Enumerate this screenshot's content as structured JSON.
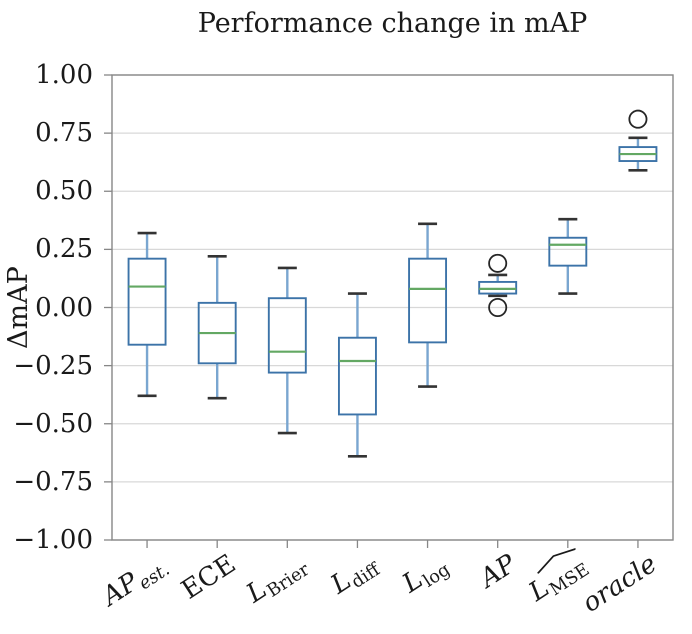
{
  "chart_data": {
    "type": "boxplot",
    "title": "Performance change in mAP",
    "ylabel": "ΔmAP",
    "xlabel": "",
    "ylim": [
      -1.0,
      1.0
    ],
    "grid": "horizontal",
    "legend": "none",
    "y_ticks": [
      {
        "value": 1.0,
        "label": "1.00"
      },
      {
        "value": 0.75,
        "label": "0.75"
      },
      {
        "value": 0.5,
        "label": "0.50"
      },
      {
        "value": 0.25,
        "label": "0.25"
      },
      {
        "value": 0.0,
        "label": "0.00"
      },
      {
        "value": -0.25,
        "label": "−0.25"
      },
      {
        "value": -0.5,
        "label": "−0.50"
      },
      {
        "value": -0.75,
        "label": "−0.75"
      },
      {
        "value": -1.0,
        "label": "−1.00"
      }
    ],
    "categories": [
      {
        "id": "ap-est",
        "main": "AP",
        "main_italic": true,
        "sub": "est.",
        "sub_italic": true,
        "hat": false
      },
      {
        "id": "ece",
        "main": "ECE",
        "main_italic": false,
        "sub": "",
        "sub_italic": false,
        "hat": false
      },
      {
        "id": "l-brier",
        "main": "L",
        "main_italic": true,
        "sub": "Brier",
        "sub_italic": false,
        "hat": false
      },
      {
        "id": "l-diff",
        "main": "L",
        "main_italic": true,
        "sub": "diff",
        "sub_italic": false,
        "hat": false
      },
      {
        "id": "l-log",
        "main": "L",
        "main_italic": true,
        "sub": "log",
        "sub_italic": false,
        "hat": false
      },
      {
        "id": "ap",
        "main": "AP",
        "main_italic": true,
        "sub": "",
        "sub_italic": false,
        "hat": false
      },
      {
        "id": "l-mse",
        "main": "L",
        "main_italic": true,
        "sub": "MSE",
        "sub_italic": false,
        "hat": true
      },
      {
        "id": "oracle",
        "main": "oracle",
        "main_italic": true,
        "sub": "",
        "sub_italic": false,
        "hat": false
      }
    ],
    "boxes": [
      {
        "category": "AP_est.",
        "whislo": -0.38,
        "q1": -0.16,
        "med": 0.09,
        "q3": 0.21,
        "whishi": 0.32,
        "fliers": []
      },
      {
        "category": "ECE",
        "whislo": -0.39,
        "q1": -0.24,
        "med": -0.11,
        "q3": 0.02,
        "whishi": 0.22,
        "fliers": []
      },
      {
        "category": "L_Brier",
        "whislo": -0.54,
        "q1": -0.28,
        "med": -0.19,
        "q3": 0.04,
        "whishi": 0.17,
        "fliers": []
      },
      {
        "category": "L_diff",
        "whislo": -0.64,
        "q1": -0.46,
        "med": -0.23,
        "q3": -0.13,
        "whishi": 0.06,
        "fliers": []
      },
      {
        "category": "L_log",
        "whislo": -0.34,
        "q1": -0.15,
        "med": 0.08,
        "q3": 0.21,
        "whishi": 0.36,
        "fliers": []
      },
      {
        "category": "AP",
        "whislo": 0.05,
        "q1": 0.06,
        "med": 0.08,
        "q3": 0.11,
        "whishi": 0.14,
        "fliers": [
          0.19,
          0.0
        ]
      },
      {
        "category": "L_MSE",
        "whislo": 0.06,
        "q1": 0.18,
        "med": 0.27,
        "q3": 0.3,
        "whishi": 0.38,
        "fliers": []
      },
      {
        "category": "oracle",
        "whislo": 0.59,
        "q1": 0.63,
        "med": 0.66,
        "q3": 0.69,
        "whishi": 0.73,
        "fliers": [
          0.81
        ]
      }
    ],
    "colors": {
      "box": "#3c73a8",
      "median": "#63a863",
      "whisker": "#7aa6d0",
      "cap": "#333333",
      "flier": "#262626",
      "grid": "#d8d8d8",
      "frame": "#878787",
      "text": "#1a1a1a",
      "background": "#ffffff"
    }
  }
}
